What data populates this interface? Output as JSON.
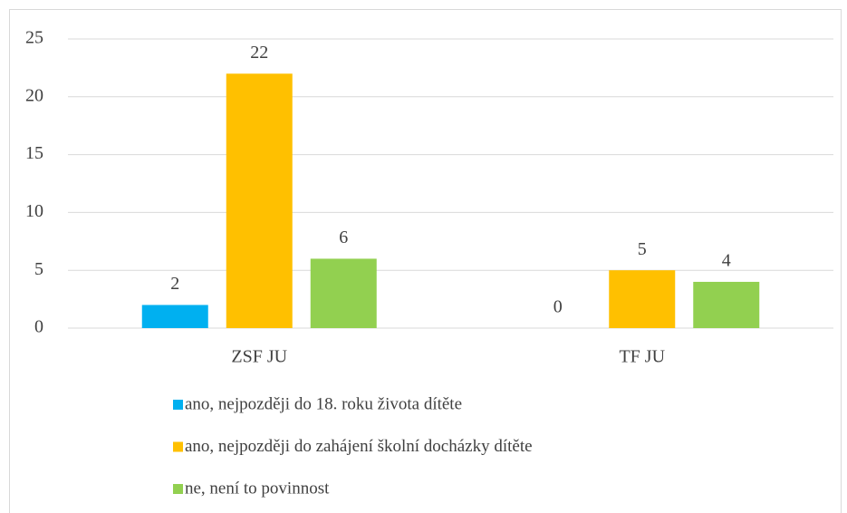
{
  "chart_data": {
    "type": "bar",
    "categories": [
      "ZSF JU",
      "TF JU"
    ],
    "series": [
      {
        "name": "ano, nejpozději do 18. roku života dítěte",
        "color": "#00b0f0",
        "values": [
          2,
          0
        ]
      },
      {
        "name": "ano, nejpozději do zahájení školní docházky dítěte",
        "color": "#ffc000",
        "values": [
          22,
          5
        ]
      },
      {
        "name": "ne, není to povinnost",
        "color": "#92d050",
        "values": [
          6,
          4
        ]
      }
    ],
    "ylim": [
      0,
      25
    ],
    "yticks": [
      0,
      5,
      10,
      15,
      20,
      25
    ],
    "grid": true,
    "legend": "bottom"
  }
}
